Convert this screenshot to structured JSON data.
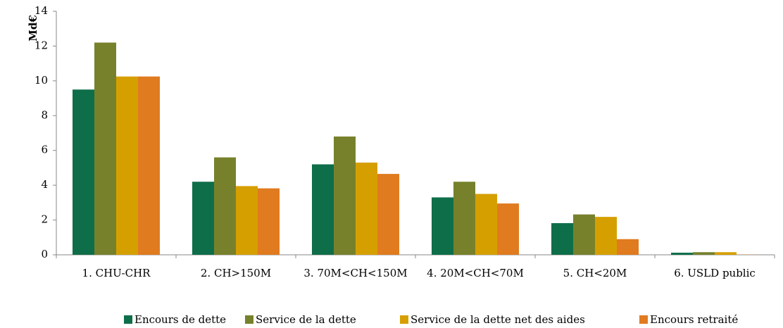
{
  "chart_data": {
    "type": "bar",
    "y_label": "Md€",
    "categories": [
      "1. CHU-CHR",
      "2. CH>150M",
      "3. 70M<CH<150M",
      "4. 20M<CH<70M",
      "5. CH<20M",
      "6. USLD public"
    ],
    "series": [
      {
        "name": "Encours de dette",
        "color": "#0e6e4a",
        "values": [
          9.5,
          4.2,
          5.2,
          3.3,
          1.82,
          0.12
        ]
      },
      {
        "name": "Service de la dette",
        "color": "#77812c",
        "values": [
          12.2,
          5.6,
          6.8,
          4.2,
          2.32,
          0.15
        ]
      },
      {
        "name": "Service de la dette net des aides",
        "color": "#d69f00",
        "values": [
          10.25,
          3.95,
          5.3,
          3.5,
          2.18,
          0.15
        ]
      },
      {
        "name": "Encours retraité",
        "color": "#e07b1f",
        "values": [
          10.25,
          3.82,
          4.65,
          2.95,
          0.9,
          0.01
        ]
      }
    ],
    "ylim": [
      0,
      14
    ],
    "yticks": [
      0,
      2,
      4,
      6,
      8,
      10,
      12,
      14
    ],
    "legend": "bottom"
  }
}
